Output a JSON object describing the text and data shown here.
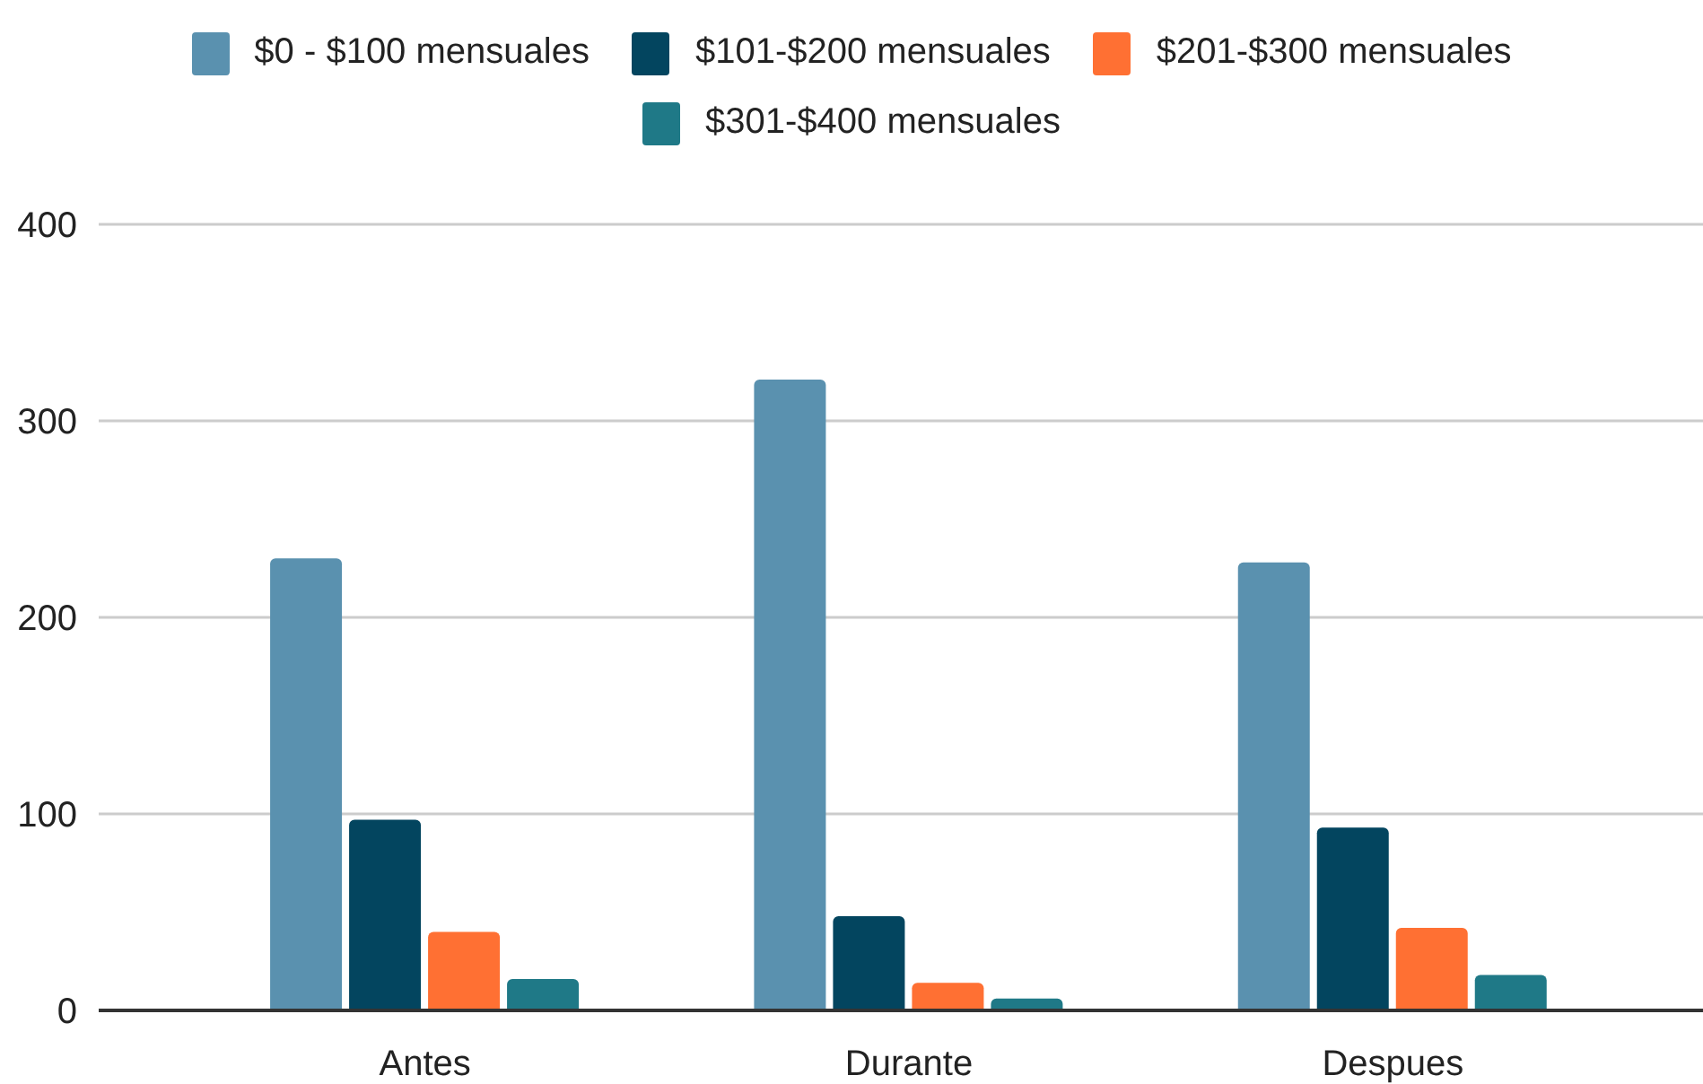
{
  "chart_data": {
    "type": "bar",
    "categories": [
      "Antes",
      "Durante",
      "Despues"
    ],
    "series": [
      {
        "name": "$0 - $100 mensuales",
        "color": "#5a91af",
        "values": [
          230,
          321,
          228
        ]
      },
      {
        "name": "$101-$200 mensuales",
        "color": "#03455f",
        "values": [
          97,
          48,
          93
        ]
      },
      {
        "name": "$201-$300 mensuales",
        "color": "#ff7033",
        "values": [
          40,
          14,
          42
        ]
      },
      {
        "name": "$301-$400 mensuales",
        "color": "#1f7987",
        "values": [
          16,
          6,
          18
        ]
      }
    ],
    "ylim": [
      0,
      400
    ],
    "yticks": [
      0,
      100,
      200,
      300,
      400
    ],
    "grid": "y",
    "legend": "top"
  }
}
